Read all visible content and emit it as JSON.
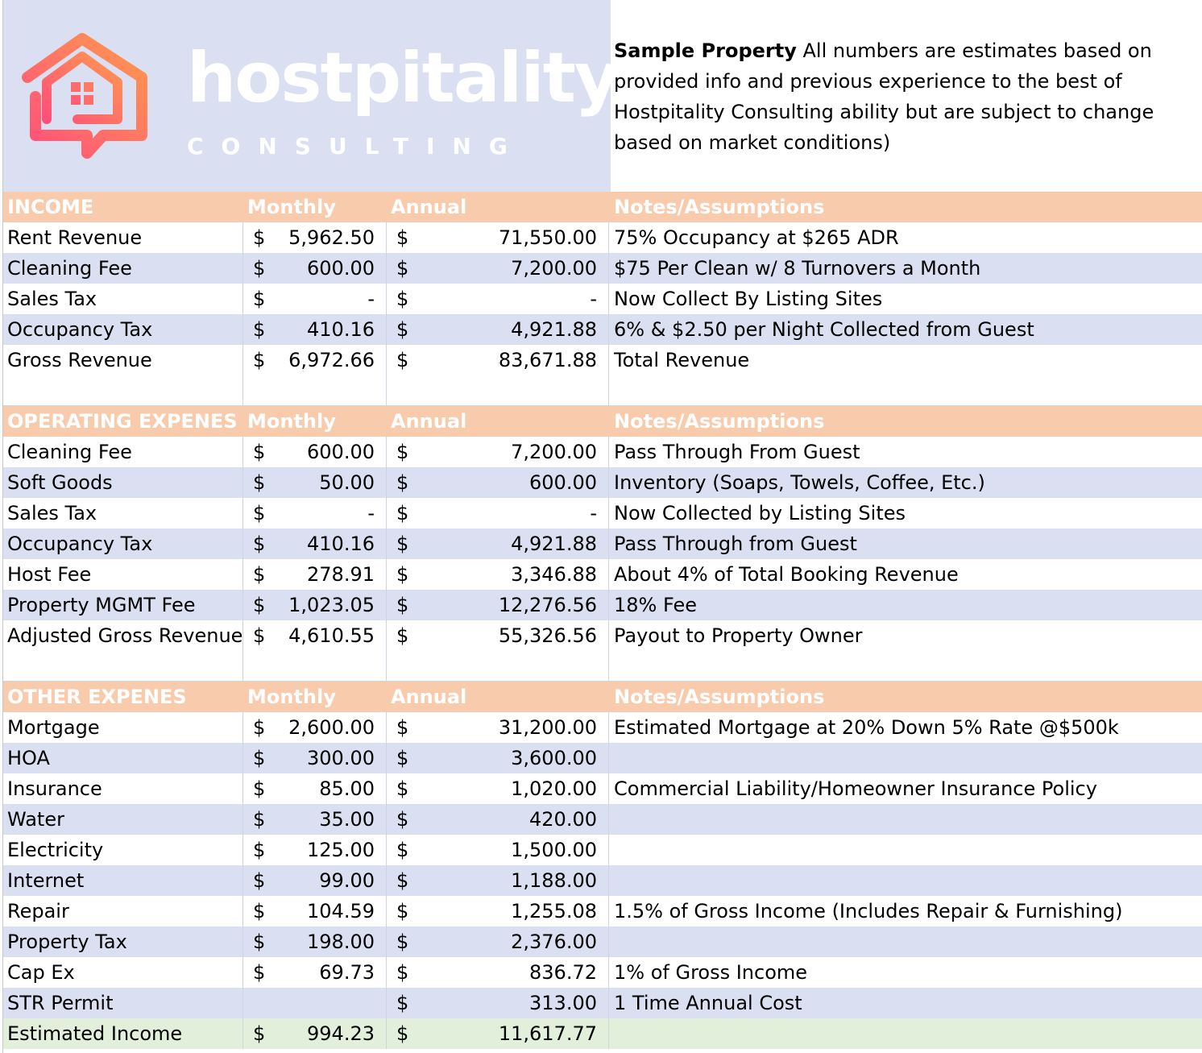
{
  "logo": {
    "word": "hostpitality",
    "sub": "CONSULTING"
  },
  "intro": {
    "bold": "Sample Property",
    "text": " All numbers are estimates based on provided info and previous experience to the best of Hostpitality Consulting ability but are subject to change based on market conditions)"
  },
  "colors": {
    "header": "#f8cbad",
    "band": "#dae0f1",
    "total": "#e2efda",
    "logo_gradient_start": "#ff4f7b",
    "logo_gradient_end": "#ff9a4f"
  },
  "income": {
    "header": {
      "label": "INCOME",
      "monthly": "Monthly",
      "annual": "Annual",
      "notes": "Notes/Assumptions"
    },
    "rows": [
      {
        "label": "Rent Revenue",
        "monthly": "5,962.50",
        "annual": "71,550.00",
        "notes": "75% Occupancy at $265 ADR"
      },
      {
        "label": "Cleaning Fee",
        "monthly": "600.00",
        "annual": "7,200.00",
        "notes": "$75 Per Clean w/ 8 Turnovers a Month"
      },
      {
        "label": "Sales Tax",
        "monthly": "-",
        "annual": "-",
        "notes": "Now Collect By Listing Sites"
      },
      {
        "label": "Occupancy Tax",
        "monthly": "410.16",
        "annual": "4,921.88",
        "notes": "6% & $2.50 per Night Collected from Guest"
      },
      {
        "label": "Gross Revenue",
        "monthly": "6,972.66",
        "annual": "83,671.88",
        "notes": "Total Revenue"
      }
    ]
  },
  "operating": {
    "header": {
      "label": "OPERATING EXPENES",
      "monthly": "Monthly",
      "annual": "Annual",
      "notes": "Notes/Assumptions"
    },
    "rows": [
      {
        "label": "Cleaning Fee",
        "monthly": "600.00",
        "annual": "7,200.00",
        "notes": "Pass Through From Guest"
      },
      {
        "label": "Soft Goods",
        "monthly": "50.00",
        "annual": "600.00",
        "notes": "Inventory (Soaps, Towels, Coffee, Etc.)"
      },
      {
        "label": "Sales Tax",
        "monthly": "-",
        "annual": "-",
        "notes": "Now Collected by Listing Sites"
      },
      {
        "label": "Occupancy Tax",
        "monthly": "410.16",
        "annual": "4,921.88",
        "notes": "Pass Through from Guest"
      },
      {
        "label": "Host Fee",
        "monthly": "278.91",
        "annual": "3,346.88",
        "notes": "About 4% of Total Booking Revenue"
      },
      {
        "label": "Property MGMT Fee",
        "monthly": "1,023.05",
        "annual": "12,276.56",
        "notes": "18% Fee"
      },
      {
        "label": "Adjusted Gross Revenue",
        "monthly": "4,610.55",
        "annual": "55,326.56",
        "notes": "Payout to Property Owner"
      }
    ]
  },
  "other": {
    "header": {
      "label": "OTHER EXPENES",
      "monthly": "Monthly",
      "annual": "Annual",
      "notes": "Notes/Assumptions"
    },
    "rows": [
      {
        "label": "Mortgage",
        "monthly": "2,600.00",
        "annual": "31,200.00",
        "notes": "Estimated Mortgage at 20% Down 5% Rate @$500k"
      },
      {
        "label": "HOA",
        "monthly": "300.00",
        "annual": "3,600.00",
        "notes": ""
      },
      {
        "label": "Insurance",
        "monthly": "85.00",
        "annual": "1,020.00",
        "notes": "Commercial Liability/Homeowner Insurance Policy"
      },
      {
        "label": "Water",
        "monthly": "35.00",
        "annual": "420.00",
        "notes": ""
      },
      {
        "label": "Electricity",
        "monthly": "125.00",
        "annual": "1,500.00",
        "notes": ""
      },
      {
        "label": "Internet",
        "monthly": "99.00",
        "annual": "1,188.00",
        "notes": ""
      },
      {
        "label": "Repair",
        "monthly": "104.59",
        "annual": "1,255.08",
        "notes": "1.5% of Gross Income (Includes Repair & Furnishing)"
      },
      {
        "label": "Property Tax",
        "monthly": "198.00",
        "annual": "2,376.00",
        "notes": ""
      },
      {
        "label": "Cap Ex",
        "monthly": "69.73",
        "annual": "836.72",
        "notes": "1% of Gross Income"
      },
      {
        "label": "STR Permit",
        "monthly": "",
        "annual": "313.00",
        "notes": "1 Time Annual Cost"
      },
      {
        "label": "Estimated Income",
        "monthly": "994.23",
        "annual": "11,617.77",
        "notes": ""
      }
    ]
  },
  "currency_symbol": "$"
}
